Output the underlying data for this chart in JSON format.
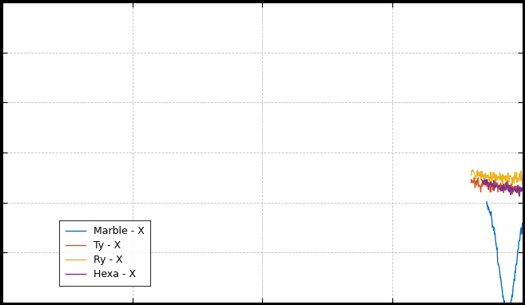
{
  "colors": {
    "marble": "#0072BD",
    "ty": "#D95319",
    "ry": "#EDB120",
    "hexa": "#7E2F8E"
  },
  "legend": [
    "Marble - X",
    "Ty - X",
    "Ry - X",
    "Hexa - X"
  ],
  "background": "#000000",
  "axes_background": "#ffffff",
  "grid_color": "#c0c0c0",
  "figsize": [
    6.57,
    3.82
  ],
  "dpi": 100,
  "linewidth": 1.0
}
